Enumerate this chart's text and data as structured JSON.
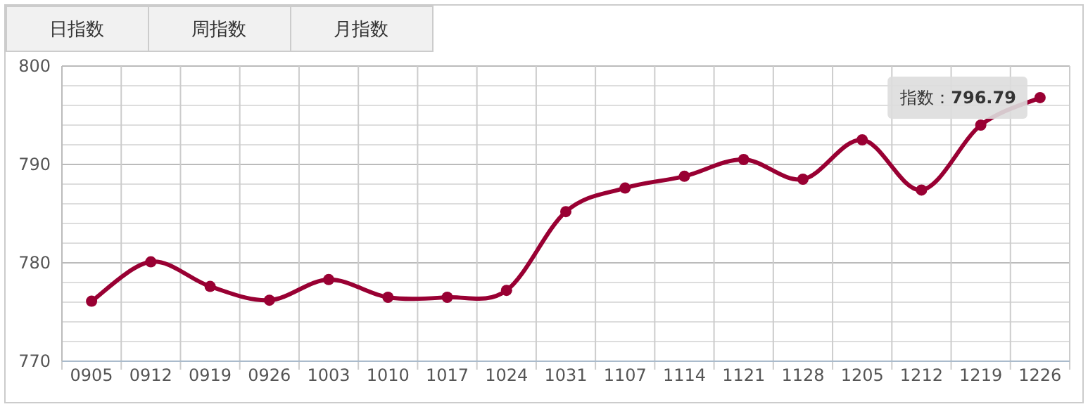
{
  "chart_data": {
    "type": "line",
    "categories": [
      "0905",
      "0912",
      "0919",
      "0926",
      "1003",
      "1010",
      "1017",
      "1024",
      "1031",
      "1107",
      "1114",
      "1121",
      "1128",
      "1205",
      "1212",
      "1219",
      "1226"
    ],
    "series": [
      {
        "color": "#990033",
        "values": [
          776.1,
          780.1,
          777.6,
          776.2,
          778.3,
          776.5,
          776.5,
          777.2,
          785.2,
          787.6,
          788.8,
          790.5,
          788.5,
          792.5,
          787.4,
          794.0,
          796.79
        ]
      }
    ],
    "ylim": [
      770,
      800
    ],
    "yticks": [
      770,
      {
        "value": 772,
        "label": null
      },
      {
        "value": 774,
        "label": null
      },
      {
        "value": 776,
        "label": null
      },
      {
        "value": 778,
        "label": null
      },
      780,
      {
        "value": 782,
        "label": null
      },
      {
        "value": 784,
        "label": null
      },
      {
        "value": 786,
        "label": null
      },
      {
        "value": 788,
        "label": null
      },
      790,
      {
        "value": 792,
        "label": null
      },
      {
        "value": 794,
        "label": null
      },
      {
        "value": 796,
        "label": null
      },
      {
        "value": 798,
        "label": null
      },
      800
    ],
    "grid": true,
    "marker": "circle",
    "annotations": [
      "日指数",
      "周指数",
      "月指数",
      {
        "text": "指数：**796.79**",
        "x": "1226",
        "y": 796.79
      }
    ]
  }
}
